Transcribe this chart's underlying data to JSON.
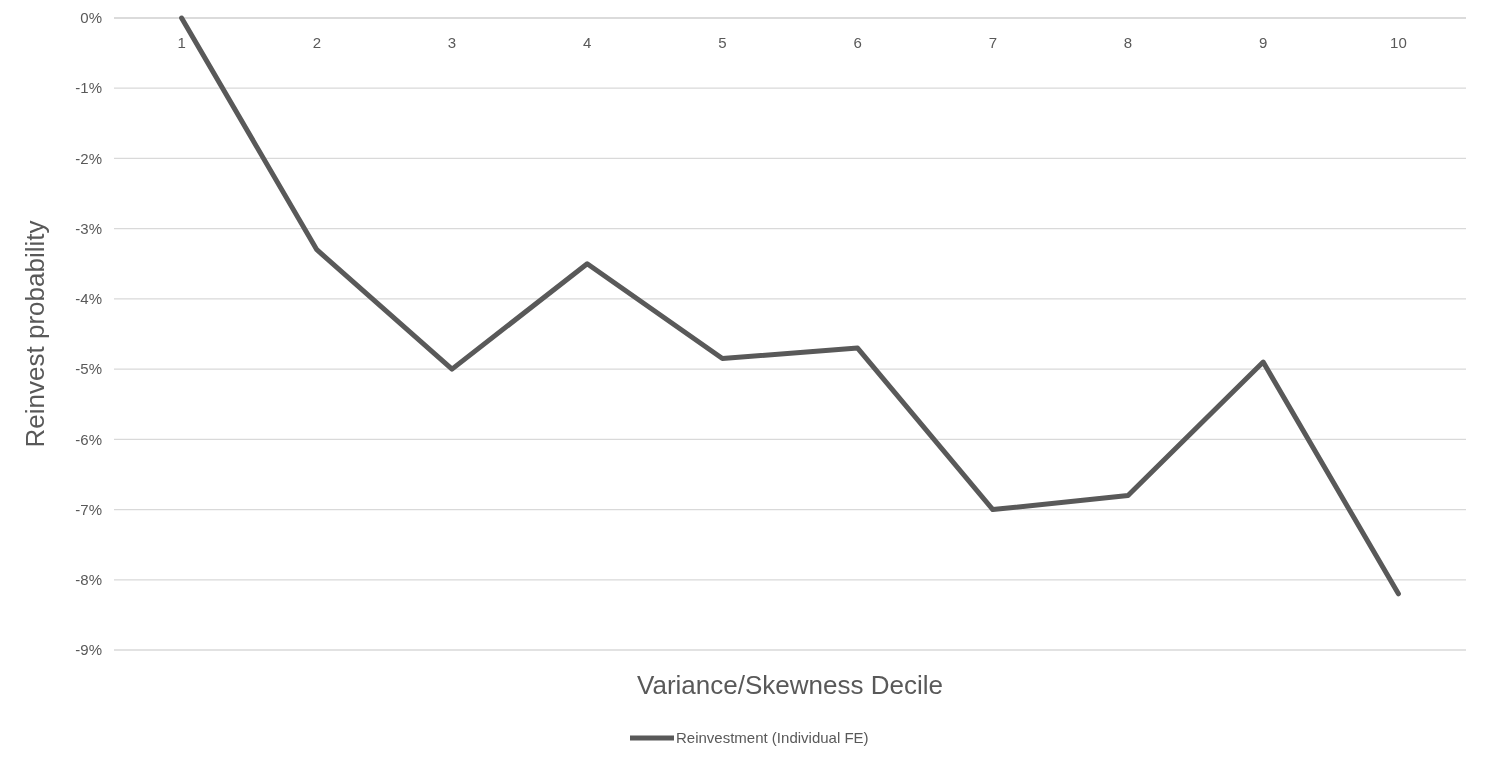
{
  "chart_data": {
    "type": "line",
    "xlabel": "Variance/Skewness Decile",
    "ylabel": "Reinvest  probability",
    "categories": [
      "1",
      "2",
      "3",
      "4",
      "5",
      "6",
      "7",
      "8",
      "9",
      "10"
    ],
    "series": [
      {
        "name": "Reinvestment (Individual  FE)",
        "color": "#595959",
        "values": [
          0,
          -3.3,
          -5.0,
          -3.5,
          -4.85,
          -4.7,
          -7.0,
          -6.8,
          -4.9,
          -8.2
        ]
      }
    ],
    "ylim": [
      -9,
      0
    ],
    "yticks": [
      {
        "value": 0,
        "label": "0%"
      },
      {
        "value": -1,
        "label": "-1%"
      },
      {
        "value": -2,
        "label": "-2%"
      },
      {
        "value": -3,
        "label": "-3%"
      },
      {
        "value": -4,
        "label": "-4%"
      },
      {
        "value": -5,
        "label": "-5%"
      },
      {
        "value": -6,
        "label": "-6%"
      },
      {
        "value": -7,
        "label": "-7%"
      },
      {
        "value": -8,
        "label": "-8%"
      },
      {
        "value": -9,
        "label": "-9%"
      }
    ],
    "grid": "y",
    "legend": "bottom",
    "marker": "none",
    "line_style": "solid"
  }
}
